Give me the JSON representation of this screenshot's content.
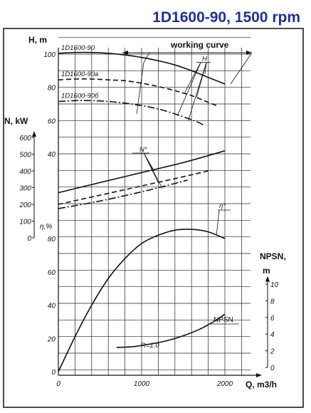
{
  "title": "1D1600-90, 1500 rpm",
  "chart_data": {
    "type": "line",
    "title": "1D1600-90, 1500 rpm",
    "xlabel": "Q, m3/h",
    "x_ticks": [
      0,
      1000,
      2000
    ],
    "xlim": [
      0,
      2300
    ],
    "axes": {
      "head": {
        "label": "H, m",
        "ticks": [
          40,
          60,
          80,
          100
        ],
        "range": [
          35,
          103
        ]
      },
      "power": {
        "label": "N, kW",
        "ticks": [
          0,
          100,
          200,
          300,
          400,
          500,
          600
        ],
        "range": [
          0,
          630
        ]
      },
      "efficiency": {
        "label": "η,%",
        "ticks": [
          0,
          20,
          40,
          60,
          80
        ],
        "range": [
          0,
          85
        ]
      },
      "npsh": {
        "label": "NPSN, m",
        "ticks": [
          0,
          2,
          4,
          6,
          8,
          10
        ],
        "range": [
          0,
          10.8
        ]
      }
    },
    "annotations": {
      "working_curve": "working curve",
      "head_group": "H",
      "power_group": "N°",
      "efficiency_curve": "η°",
      "npsh_curve": "NPSN",
      "impeller": "R=1.0"
    },
    "series": [
      {
        "name": "1D1600-90",
        "axis": "head",
        "style": "solid",
        "x": [
          0,
          200,
          400,
          600,
          800,
          1000,
          1200,
          1400,
          1600,
          1800,
          2000
        ],
        "values": [
          100.5,
          101,
          101,
          100.5,
          99.5,
          98,
          96,
          93.5,
          90,
          86,
          82
        ]
      },
      {
        "name": "1D1600-90a",
        "axis": "head",
        "style": "dashed",
        "x": [
          0,
          200,
          400,
          600,
          800,
          1000,
          1200,
          1400,
          1600,
          1800,
          1900
        ],
        "values": [
          84.5,
          85,
          85,
          84.5,
          84,
          82.5,
          80.5,
          78,
          75,
          71,
          69
        ]
      },
      {
        "name": "1D1600-90б",
        "axis": "head",
        "style": "dashdot",
        "x": [
          0,
          200,
          400,
          600,
          800,
          1000,
          1200,
          1400,
          1600,
          1700,
          1750
        ],
        "values": [
          71.5,
          72,
          72,
          71.5,
          70.5,
          69,
          67,
          64,
          60.5,
          58.5,
          57
        ]
      },
      {
        "name": "",
        "axis": "power",
        "style": "solid",
        "x": [
          0,
          500,
          1000,
          1500,
          2000
        ],
        "values": [
          270,
          330,
          390,
          450,
          520
        ]
      },
      {
        "name": "",
        "axis": "power",
        "style": "dashed",
        "x": [
          0,
          500,
          1000,
          1500,
          1800,
          1830
        ],
        "values": [
          200,
          255,
          310,
          365,
          400,
          402
        ]
      },
      {
        "name": "",
        "axis": "power",
        "style": "dashdot",
        "x": [
          0,
          500,
          1000,
          1400,
          1550
        ],
        "values": [
          175,
          220,
          275,
          325,
          345
        ]
      },
      {
        "name": "",
        "axis": "efficiency",
        "style": "solid",
        "x": [
          0,
          200,
          400,
          600,
          800,
          1000,
          1200,
          1400,
          1600,
          1800,
          2000
        ],
        "values": [
          0,
          21,
          40,
          56,
          68,
          77,
          82,
          85,
          85.5,
          84,
          80
        ]
      },
      {
        "name": "",
        "axis": "npsh",
        "style": "solid",
        "x": [
          700,
          900,
          1100,
          1300,
          1500,
          1700,
          1900,
          2000
        ],
        "values": [
          2.4,
          2.5,
          2.8,
          3.2,
          3.8,
          4.6,
          5.7,
          6.4
        ]
      }
    ]
  }
}
